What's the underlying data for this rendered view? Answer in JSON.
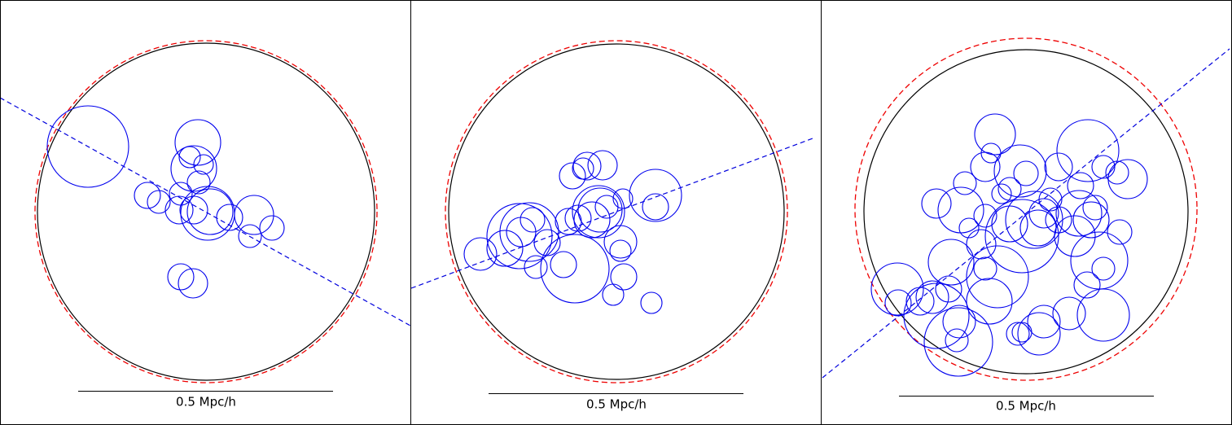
{
  "panels": [
    {
      "scale_label": "0.5 Mpc/h"
    },
    {
      "scale_label": "0.5 Mpc/h"
    },
    {
      "scale_label": "0.5 Mpc/h"
    }
  ]
}
